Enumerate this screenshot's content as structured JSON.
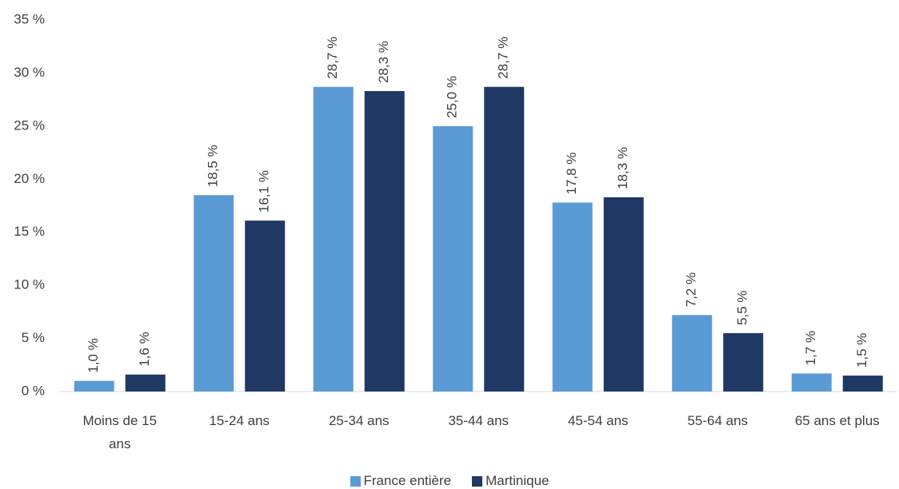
{
  "chart_data": {
    "type": "bar",
    "categories": [
      "Moins de 15 ans",
      "15-24 ans",
      "25-34 ans",
      "35-44 ans",
      "45-54 ans",
      "55-64 ans",
      "65 ans et plus"
    ],
    "series": [
      {
        "name": "France entière",
        "color": "#5b9bd5",
        "values": [
          1.0,
          18.5,
          28.7,
          25.0,
          17.8,
          7.2,
          1.7
        ],
        "value_labels": [
          "1,0 %",
          "18,5 %",
          "28,7 %",
          "25,0 %",
          "17,8 %",
          "7,2 %",
          "1,7 %"
        ]
      },
      {
        "name": "Martinique",
        "color": "#203864",
        "values": [
          1.6,
          16.1,
          28.3,
          28.7,
          18.3,
          5.5,
          1.5
        ],
        "value_labels": [
          "1,6 %",
          "16,1 %",
          "28,3 %",
          "28,7 %",
          "18,3 %",
          "5,5 %",
          "1,5 %"
        ]
      }
    ],
    "ylim": [
      0,
      35
    ],
    "yticks": [
      {
        "value": 0,
        "label": "0 %"
      },
      {
        "value": 5,
        "label": "5 %"
      },
      {
        "value": 10,
        "label": "10 %"
      },
      {
        "value": 15,
        "label": "15 %"
      },
      {
        "value": 20,
        "label": "20 %"
      },
      {
        "value": 25,
        "label": "25 %"
      },
      {
        "value": 30,
        "label": "30 %"
      },
      {
        "value": 35,
        "label": "35 %"
      }
    ],
    "grid": false,
    "legend": "bottom"
  }
}
